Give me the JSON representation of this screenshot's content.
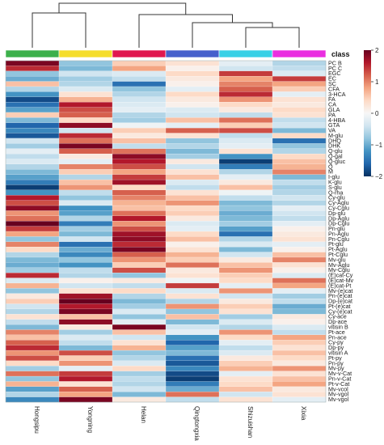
{
  "chart_data": {
    "type": "heatmap",
    "columns": [
      "Hongsipu",
      "Yongning",
      "Helan",
      "Qingtongxia",
      "Shizuishan",
      "Xixia"
    ],
    "class_colors": [
      "#3cb04b",
      "#f5dd2a",
      "#e0174f",
      "#4660cc",
      "#38d0e6",
      "#ea2ee0"
    ],
    "column_order_in_tree": [
      "Hongsipu",
      "Yongning",
      "Helan",
      "Qingtongxia",
      "Shizuishan",
      "Xixia"
    ],
    "class_title": "class",
    "rows": [
      "PC B",
      "PC C",
      "EGC",
      "EC",
      "SC",
      "CFA",
      "3-HCA",
      "FA",
      "CA",
      "GLA",
      "PA",
      "4-HBA",
      "GTA",
      "VA",
      "M-glu",
      "DHQ",
      "DHK",
      "Q-glu",
      "Q-gal",
      "Q-gluc",
      "Q",
      "M",
      "I-glu",
      "K-glu",
      "S-glu",
      "Q-rha",
      "Cy-glu",
      "Cy-Aglu",
      "Cy-Cglu",
      "Dp-glu",
      "Dp-Aglu",
      "Dp-Cglu",
      "Pn-glu",
      "Pn-Aglu",
      "Pn-Cglu",
      "Pt-glu",
      "Pt-Aglu",
      "Pt-Cglu",
      "Mv-glu",
      "Mv-Aglu",
      "Mv-Cglu",
      "(E)cat-Cy",
      "(E)cat-Mv",
      "(E)cat-Pt",
      "Mv-(e)cat",
      "Pn-(e)cat",
      "Dp-(e)cat",
      "Pt-(e)cat",
      "Cy-(e)cat",
      "Cy-ace",
      "Dp-ace",
      "vitisin B",
      "Pt-ace",
      "Pn-ace",
      "Cy-py",
      "Dp-py",
      "vitisin A",
      "Pt-py",
      "Pn-py",
      "Mv-py",
      "Mv-v-Cat",
      "Pn-v-Cat",
      "Pt-v-Cat",
      "Mv-vcol",
      "Mv-vgol",
      "Mv-vgol"
    ],
    "values": [
      [
        1.9,
        -0.8,
        0.5,
        0.3,
        -0.2,
        -0.6
      ],
      [
        1.5,
        -0.9,
        0.8,
        0.1,
        -0.4,
        -0.5
      ],
      [
        -0.8,
        -0.4,
        -0.3,
        0.4,
        1.4,
        -0.3
      ],
      [
        -1.0,
        -0.7,
        -0.5,
        0.2,
        0.8,
        1.4
      ],
      [
        0.6,
        -0.6,
        -1.5,
        0.1,
        1.0,
        0.8
      ],
      [
        -0.6,
        -0.3,
        -0.8,
        -0.2,
        1.2,
        0.5
      ],
      [
        -1.2,
        0.3,
        -0.6,
        0.4,
        1.5,
        -0.2
      ],
      [
        -1.8,
        0.7,
        -0.4,
        0.2,
        0.9,
        0.3
      ],
      [
        -1.5,
        1.6,
        -0.3,
        0.1,
        0.4,
        0.2
      ],
      [
        -1.1,
        1.3,
        -0.2,
        -0.3,
        0.2,
        0.4
      ],
      [
        0.5,
        1.2,
        -0.6,
        -0.4,
        -0.5,
        0.3
      ],
      [
        -0.9,
        0.4,
        -0.7,
        0.6,
        1.1,
        -0.5
      ],
      [
        -1.6,
        1.8,
        -0.1,
        -0.2,
        0.5,
        -0.4
      ],
      [
        -1.3,
        -0.4,
        0.5,
        1.2,
        1.3,
        -0.9
      ],
      [
        -1.7,
        1.5,
        0.2,
        0.3,
        -0.5,
        0.4
      ],
      [
        -0.4,
        1.1,
        0.6,
        -0.8,
        -0.3,
        -1.5
      ],
      [
        -0.7,
        1.9,
        -0.5,
        -0.6,
        -0.2,
        -0.8
      ],
      [
        -0.2,
        1.2,
        1.1,
        -0.9,
        0.3,
        -0.6
      ],
      [
        -0.5,
        0.2,
        1.8,
        -0.7,
        -1.2,
        0.4
      ],
      [
        -0.3,
        -0.2,
        1.6,
        0.2,
        -1.9,
        0.6
      ],
      [
        -0.6,
        1.0,
        1.3,
        -0.4,
        -1.4,
        0.7
      ],
      [
        -0.9,
        0.5,
        0.8,
        0.3,
        -0.6,
        1.0
      ],
      [
        -1.1,
        -0.6,
        1.4,
        0.6,
        -0.2,
        -0.9
      ],
      [
        -1.4,
        0.6,
        1.7,
        -0.3,
        0.2,
        -0.5
      ],
      [
        -1.9,
        0.9,
        0.4,
        -0.5,
        0.6,
        -0.7
      ],
      [
        -1.2,
        -0.5,
        1.2,
        0.3,
        -0.1,
        -0.6
      ],
      [
        1.6,
        -0.8,
        1.0,
        0.6,
        -0.5,
        -0.4
      ],
      [
        1.3,
        -0.3,
        0.7,
        0.9,
        -0.9,
        -0.6
      ],
      [
        1.8,
        -1.2,
        0.6,
        0.4,
        -0.8,
        -0.2
      ],
      [
        0.9,
        -1.1,
        1.1,
        0.5,
        -1.0,
        -0.4
      ],
      [
        1.1,
        -0.6,
        1.6,
        0.2,
        -0.9,
        -0.5
      ],
      [
        2.0,
        -1.4,
        0.9,
        -0.3,
        -0.7,
        -0.2
      ],
      [
        1.4,
        -0.7,
        1.3,
        -0.2,
        -1.1,
        0.1
      ],
      [
        0.8,
        -0.9,
        1.7,
        0.4,
        -1.5,
        0.2
      ],
      [
        -0.8,
        -0.4,
        1.8,
        0.6,
        -0.6,
        0.3
      ],
      [
        1.0,
        -1.5,
        1.5,
        0.1,
        -0.3,
        -0.2
      ],
      [
        0.4,
        -1.0,
        1.9,
        0.3,
        -0.9,
        0.1
      ],
      [
        -0.6,
        -1.3,
        1.2,
        0.7,
        -0.4,
        0.6
      ],
      [
        -0.9,
        -0.8,
        0.9,
        0.5,
        0.2,
        1.0
      ],
      [
        -1.0,
        -1.2,
        0.5,
        1.1,
        0.6,
        0.3
      ],
      [
        -0.7,
        -0.5,
        1.3,
        0.2,
        0.9,
        0.1
      ],
      [
        1.5,
        -0.6,
        -0.8,
        0.3,
        0.5,
        -0.3
      ],
      [
        -0.3,
        0.1,
        0.2,
        -0.1,
        0.4,
        1.1
      ],
      [
        0.7,
        -0.4,
        -0.5,
        1.4,
        -0.2,
        0.8
      ],
      [
        -0.8,
        0.3,
        0.4,
        -0.3,
        0.9,
        -0.2
      ],
      [
        0.2,
        1.7,
        -0.6,
        0.3,
        -0.4,
        -0.7
      ],
      [
        0.5,
        2.0,
        -0.9,
        -0.6,
        0.2,
        -0.5
      ],
      [
        -0.4,
        1.6,
        -0.7,
        0.9,
        0.5,
        -1.0
      ],
      [
        -0.6,
        1.9,
        -0.3,
        -0.8,
        0.3,
        -0.9
      ],
      [
        0.3,
        0.6,
        -0.8,
        0.6,
        -0.7,
        0.2
      ],
      [
        -0.5,
        1.8,
        -0.2,
        -0.9,
        -0.3,
        0.1
      ],
      [
        -0.9,
        0.2,
        1.9,
        -0.4,
        -0.6,
        -0.3
      ],
      [
        1.0,
        -0.7,
        0.6,
        -0.2,
        0.9,
        -0.5
      ],
      [
        0.6,
        -0.3,
        -0.4,
        -1.2,
        0.4,
        0.8
      ],
      [
        1.2,
        -0.5,
        0.3,
        -1.6,
        -0.2,
        0.5
      ],
      [
        1.5,
        -0.9,
        0.7,
        -1.1,
        -0.5,
        0.3
      ],
      [
        0.9,
        1.3,
        -0.8,
        -0.9,
        -0.3,
        0.6
      ],
      [
        1.3,
        0.5,
        -0.6,
        -1.5,
        0.2,
        0.4
      ],
      [
        0.4,
        0.9,
        -0.3,
        -1.7,
        0.5,
        0.2
      ],
      [
        -0.7,
        -0.2,
        0.4,
        -1.3,
        0.7,
        0.9
      ],
      [
        1.1,
        1.4,
        -0.7,
        -1.8,
        -0.2,
        0.3
      ],
      [
        -0.8,
        1.6,
        -0.5,
        -1.9,
        0.3,
        0.6
      ],
      [
        0.7,
        0.3,
        -0.6,
        -1.4,
        0.4,
        0.8
      ],
      [
        -1.1,
        1.2,
        -0.4,
        -1.0,
        0.6,
        0.2
      ],
      [
        -0.6,
        0.8,
        -0.9,
        1.1,
        -0.4,
        0.3
      ],
      [
        -1.3,
        1.9,
        0.2,
        -0.5,
        0.3,
        -0.2
      ]
    ],
    "color_scale": {
      "min": -2,
      "max": 2,
      "ticks": [
        "2",
        "1",
        "0",
        "−1",
        "−2"
      ],
      "stops": [
        "#053061",
        "#2166ac",
        "#4393c3",
        "#92c5de",
        "#d1e5f0",
        "#f7f7f7",
        "#fddbc7",
        "#f4a582",
        "#d6604d",
        "#b2182b",
        "#67001f"
      ]
    }
  }
}
